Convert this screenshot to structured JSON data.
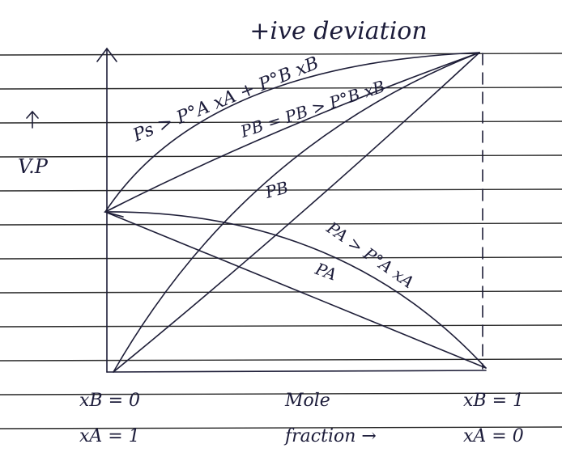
{
  "title": "+ive deviation",
  "y_axis_label": "V.P",
  "curve_labels": {
    "total": "Ps > P°A xA + P°B xB",
    "pb_relation": "PB = PB > P°B xB",
    "pb": "PB",
    "pa_relation": "PA > P°A xA",
    "pa": "PA"
  },
  "left_labels": [
    "xB = 0",
    "xA = 1"
  ],
  "center_labels": [
    "Mole",
    "fraction →"
  ],
  "right_labels": [
    "xB = 1",
    "xA = 0"
  ]
}
